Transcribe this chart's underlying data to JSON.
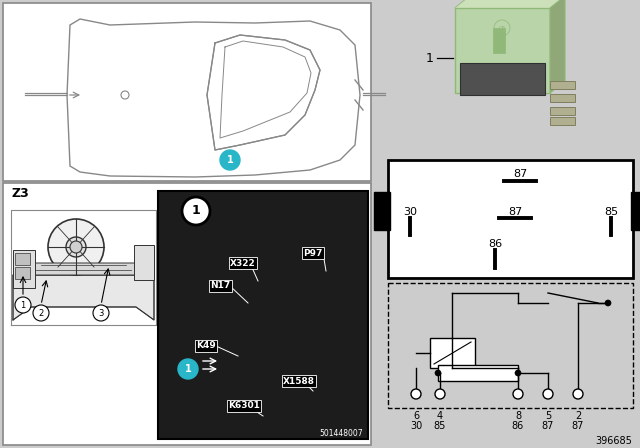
{
  "bg_color": "#cccccc",
  "white": "#ffffff",
  "black": "#000000",
  "dark_gray": "#333333",
  "mid_gray": "#888888",
  "light_gray": "#bbbbbb",
  "cyan_color": "#29b6c8",
  "relay_green": "#b8d4a8",
  "relay_green_dark": "#90b878",
  "relay_dark": "#505050",
  "footer_number": "396685",
  "photo_watermark": "501448007",
  "title_label": "Z3"
}
